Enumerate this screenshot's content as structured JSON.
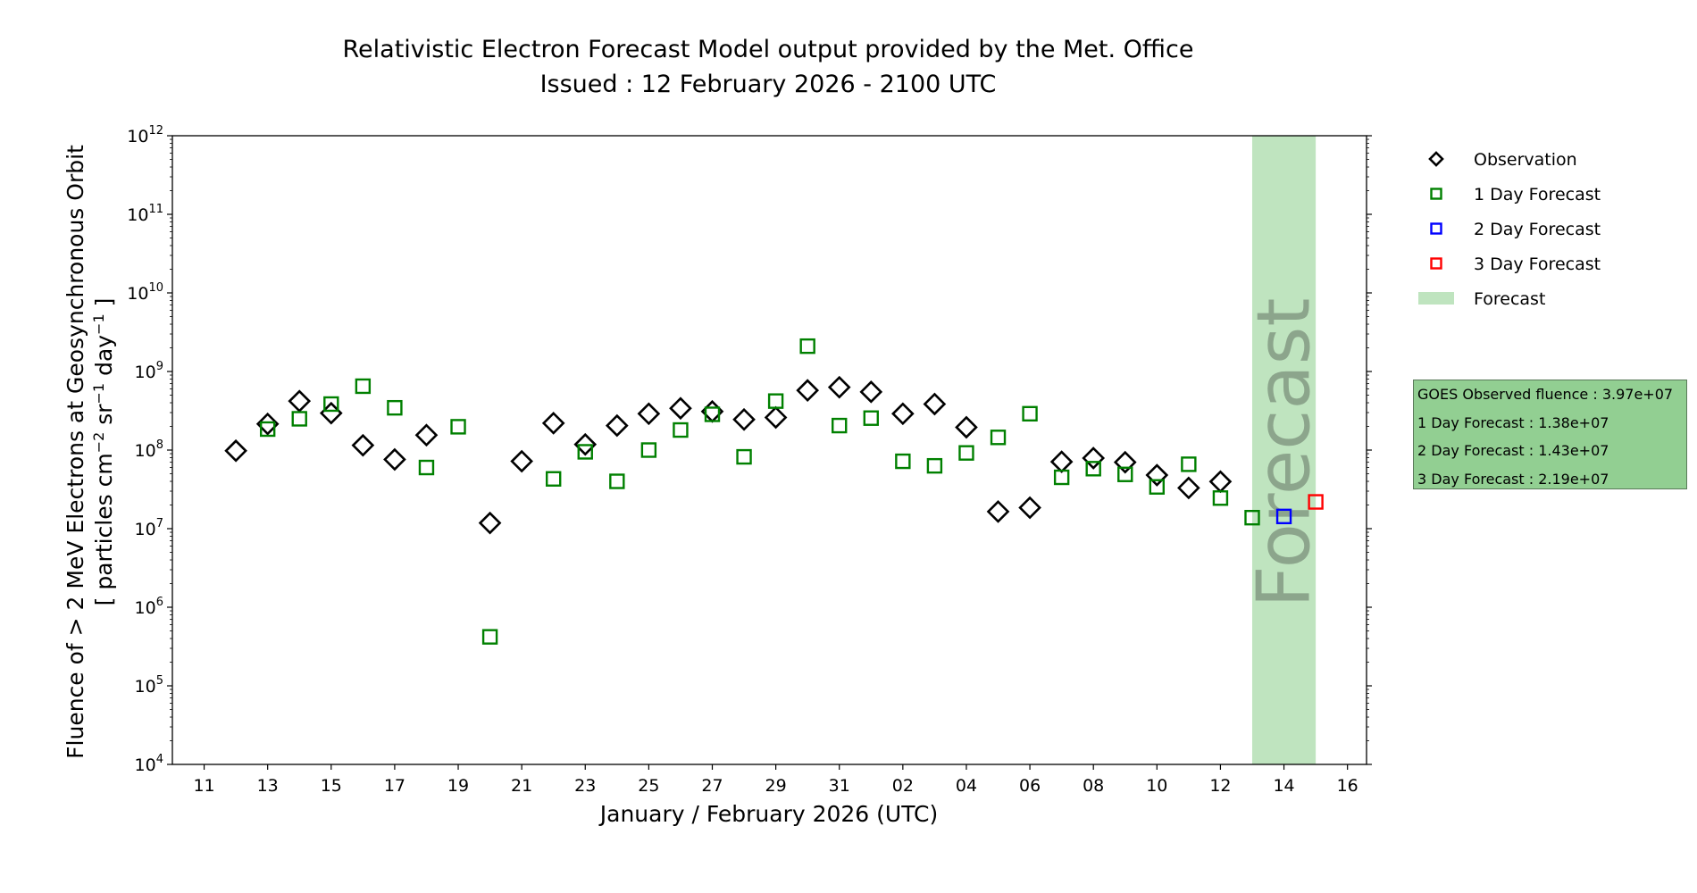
{
  "title_line1": "Relativistic Electron Forecast Model output provided by the Met. Office",
  "title_line2": "Issued : 12 February 2026 - 2100 UTC",
  "forecast_band_label": "Forecast",
  "info_box": {
    "lines": [
      "GOES Observed fluence : 3.97e+07",
      "1 Day Forecast : 1.38e+07",
      "2 Day Forecast : 1.43e+07",
      "3 Day Forecast : 2.19e+07"
    ]
  },
  "colors": {
    "observation": "#000000",
    "day1": "#008000",
    "day2": "#0000ff",
    "day3": "#ff0000",
    "forecast_band": "#bfe4bf",
    "forecast_text": "#8ca58c"
  },
  "chart_data": {
    "type": "scatter",
    "title": "Relativistic Electron Forecast Model output provided by the Met. Office",
    "subtitle": "Issued : 12 February 2026 - 2100 UTC",
    "xlabel": "January / February 2026 (UTC)",
    "ylabel_line1": "Fluence of > 2 MeV Electrons at Geosynchronous Orbit",
    "ylabel_line2": "[ particles cm",
    "ylabel_sup1": "−2",
    "ylabel_mid1": " sr",
    "ylabel_sup2": "−1",
    "ylabel_mid2": " day",
    "ylabel_sup3": "−1",
    "ylabel_end": " ]",
    "xlim": [
      "2026-01-10",
      "2026-02-16.6"
    ],
    "y_scale": "log",
    "ylim": [
      10000,
      1000000000000
    ],
    "x_ticks": [
      {
        "date": "2026-01-11",
        "label": "11"
      },
      {
        "date": "2026-01-13",
        "label": "13"
      },
      {
        "date": "2026-01-15",
        "label": "15"
      },
      {
        "date": "2026-01-17",
        "label": "17"
      },
      {
        "date": "2026-01-19",
        "label": "19"
      },
      {
        "date": "2026-01-21",
        "label": "21"
      },
      {
        "date": "2026-01-23",
        "label": "23"
      },
      {
        "date": "2026-01-25",
        "label": "25"
      },
      {
        "date": "2026-01-27",
        "label": "27"
      },
      {
        "date": "2026-01-29",
        "label": "29"
      },
      {
        "date": "2026-01-31",
        "label": "31"
      },
      {
        "date": "2026-02-02",
        "label": "02"
      },
      {
        "date": "2026-02-04",
        "label": "04"
      },
      {
        "date": "2026-02-06",
        "label": "06"
      },
      {
        "date": "2026-02-08",
        "label": "08"
      },
      {
        "date": "2026-02-10",
        "label": "10"
      },
      {
        "date": "2026-02-12",
        "label": "12"
      },
      {
        "date": "2026-02-14",
        "label": "14"
      },
      {
        "date": "2026-02-16",
        "label": "16"
      }
    ],
    "y_ticks": [
      {
        "value": 10000,
        "base": "10",
        "exp": "4"
      },
      {
        "value": 100000,
        "base": "10",
        "exp": "5"
      },
      {
        "value": 1000000,
        "base": "10",
        "exp": "6"
      },
      {
        "value": 10000000,
        "base": "10",
        "exp": "7"
      },
      {
        "value": 100000000,
        "base": "10",
        "exp": "8"
      },
      {
        "value": 1000000000,
        "base": "10",
        "exp": "9"
      },
      {
        "value": 10000000000,
        "base": "10",
        "exp": "10"
      },
      {
        "value": 100000000000,
        "base": "10",
        "exp": "11"
      },
      {
        "value": 1000000000000,
        "base": "10",
        "exp": "12"
      }
    ],
    "forecast_band": {
      "x_start": "2026-02-13",
      "x_end": "2026-02-15"
    },
    "legend": {
      "placement": "outside-right",
      "entries": [
        {
          "label": "Observation",
          "marker": "diamond",
          "color": "#000000"
        },
        {
          "label": "1 Day Forecast",
          "marker": "square",
          "color": "#008000"
        },
        {
          "label": "2 Day Forecast",
          "marker": "square",
          "color": "#0000ff"
        },
        {
          "label": "3 Day Forecast",
          "marker": "square",
          "color": "#ff0000"
        },
        {
          "label": "Forecast",
          "marker": "band",
          "color": "#bfe4bf"
        }
      ]
    },
    "series": [
      {
        "name": "Observation",
        "marker": "diamond",
        "color": "#000000",
        "points": [
          {
            "x": "2026-01-12",
            "y": 98000000
          },
          {
            "x": "2026-01-13",
            "y": 215000000
          },
          {
            "x": "2026-01-14",
            "y": 420000000
          },
          {
            "x": "2026-01-15",
            "y": 295000000
          },
          {
            "x": "2026-01-16",
            "y": 115000000
          },
          {
            "x": "2026-01-17",
            "y": 76000000
          },
          {
            "x": "2026-01-18",
            "y": 155000000
          },
          {
            "x": "2026-01-20",
            "y": 11800000
          },
          {
            "x": "2026-01-21",
            "y": 72000000
          },
          {
            "x": "2026-01-22",
            "y": 220000000
          },
          {
            "x": "2026-01-23",
            "y": 118000000
          },
          {
            "x": "2026-01-24",
            "y": 205000000
          },
          {
            "x": "2026-01-25",
            "y": 290000000
          },
          {
            "x": "2026-01-26",
            "y": 340000000
          },
          {
            "x": "2026-01-27",
            "y": 310000000
          },
          {
            "x": "2026-01-28",
            "y": 245000000
          },
          {
            "x": "2026-01-29",
            "y": 260000000
          },
          {
            "x": "2026-01-30",
            "y": 575000000
          },
          {
            "x": "2026-01-31",
            "y": 630000000
          },
          {
            "x": "2026-02-01",
            "y": 550000000
          },
          {
            "x": "2026-02-02",
            "y": 290000000
          },
          {
            "x": "2026-02-03",
            "y": 385000000
          },
          {
            "x": "2026-02-04",
            "y": 195000000
          },
          {
            "x": "2026-02-05",
            "y": 16500000
          },
          {
            "x": "2026-02-06",
            "y": 18500000
          },
          {
            "x": "2026-02-07",
            "y": 71000000
          },
          {
            "x": "2026-02-08",
            "y": 79000000
          },
          {
            "x": "2026-02-09",
            "y": 70000000
          },
          {
            "x": "2026-02-10",
            "y": 48000000
          },
          {
            "x": "2026-02-11",
            "y": 33000000
          },
          {
            "x": "2026-02-12",
            "y": 39700000
          }
        ]
      },
      {
        "name": "1 Day Forecast",
        "marker": "square",
        "color": "#008000",
        "points": [
          {
            "x": "2026-01-13",
            "y": 185000000
          },
          {
            "x": "2026-01-14",
            "y": 250000000
          },
          {
            "x": "2026-01-15",
            "y": 385000000
          },
          {
            "x": "2026-01-16",
            "y": 650000000
          },
          {
            "x": "2026-01-17",
            "y": 345000000
          },
          {
            "x": "2026-01-18",
            "y": 60000000
          },
          {
            "x": "2026-01-19",
            "y": 198000000
          },
          {
            "x": "2026-01-20",
            "y": 420000
          },
          {
            "x": "2026-01-22",
            "y": 43000000
          },
          {
            "x": "2026-01-23",
            "y": 95000000
          },
          {
            "x": "2026-01-24",
            "y": 40000000
          },
          {
            "x": "2026-01-25",
            "y": 100000000
          },
          {
            "x": "2026-01-26",
            "y": 180000000
          },
          {
            "x": "2026-01-27",
            "y": 285000000
          },
          {
            "x": "2026-01-28",
            "y": 82000000
          },
          {
            "x": "2026-01-29",
            "y": 420000000
          },
          {
            "x": "2026-01-30",
            "y": 2100000000
          },
          {
            "x": "2026-01-31",
            "y": 205000000
          },
          {
            "x": "2026-02-01",
            "y": 255000000
          },
          {
            "x": "2026-02-02",
            "y": 72000000
          },
          {
            "x": "2026-02-03",
            "y": 63000000
          },
          {
            "x": "2026-02-04",
            "y": 92000000
          },
          {
            "x": "2026-02-05",
            "y": 145000000
          },
          {
            "x": "2026-02-06",
            "y": 290000000
          },
          {
            "x": "2026-02-07",
            "y": 45000000
          },
          {
            "x": "2026-02-08",
            "y": 58000000
          },
          {
            "x": "2026-02-09",
            "y": 49000000
          },
          {
            "x": "2026-02-10",
            "y": 34000000
          },
          {
            "x": "2026-02-11",
            "y": 66000000
          },
          {
            "x": "2026-02-12",
            "y": 24500000
          },
          {
            "x": "2026-02-13",
            "y": 13800000
          }
        ]
      },
      {
        "name": "2 Day Forecast",
        "marker": "square",
        "color": "#0000ff",
        "points": [
          {
            "x": "2026-02-14",
            "y": 14300000
          }
        ]
      },
      {
        "name": "3 Day Forecast",
        "marker": "square",
        "color": "#ff0000",
        "points": [
          {
            "x": "2026-02-15",
            "y": 21900000
          }
        ]
      }
    ]
  }
}
